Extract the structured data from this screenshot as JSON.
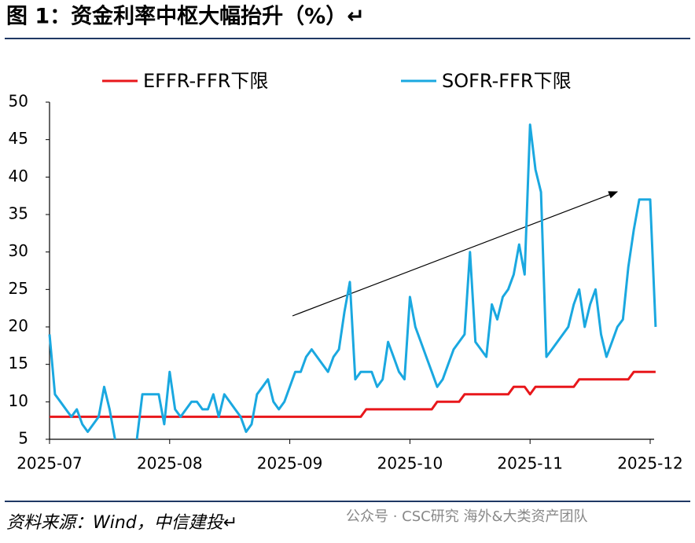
{
  "chart_data": {
    "type": "line",
    "title": "图 1：资金利率中枢大幅抬升（%）↵",
    "source": "资料来源：Wind，中信建投↵",
    "watermark": "公众号 · CSC研究 海外&大类资产团队",
    "categories": [
      "2025-07",
      null,
      null,
      null,
      null,
      null,
      null,
      null,
      null,
      null,
      null,
      null,
      null,
      null,
      null,
      null,
      null,
      null,
      null,
      null,
      null,
      null,
      "2025-08",
      null,
      null,
      null,
      null,
      null,
      null,
      null,
      null,
      null,
      null,
      null,
      null,
      null,
      null,
      null,
      null,
      null,
      null,
      null,
      null,
      null,
      "2025-09",
      null,
      null,
      null,
      null,
      null,
      null,
      null,
      null,
      null,
      null,
      null,
      null,
      null,
      null,
      null,
      null,
      null,
      null,
      null,
      null,
      null,
      "2025-10",
      null,
      null,
      null,
      null,
      null,
      null,
      null,
      null,
      null,
      null,
      null,
      null,
      null,
      null,
      null,
      null,
      null,
      null,
      null,
      null,
      null,
      "2025-11",
      null,
      null,
      null,
      null,
      null,
      null,
      null,
      null,
      null,
      null,
      null,
      null,
      null,
      null,
      null,
      null,
      null,
      null,
      null,
      null,
      null,
      "2025-12",
      null
    ],
    "series": [
      {
        "name": "EFFR-FFR下限",
        "color": "#e8171b",
        "values": [
          8,
          8,
          8,
          8,
          8,
          8,
          8,
          8,
          8,
          8,
          8,
          8,
          8,
          8,
          8,
          8,
          8,
          8,
          8,
          8,
          8,
          8,
          8,
          8,
          8,
          8,
          8,
          8,
          8,
          8,
          8,
          8,
          8,
          8,
          8,
          8,
          8,
          8,
          8,
          8,
          8,
          8,
          8,
          8,
          8,
          8,
          8,
          8,
          8,
          8,
          8,
          8,
          8,
          8,
          8,
          8,
          8,
          8,
          9,
          9,
          9,
          9,
          9,
          9,
          9,
          9,
          9,
          9,
          9,
          9,
          9,
          10,
          10,
          10,
          10,
          10,
          11,
          11,
          11,
          11,
          11,
          11,
          11,
          11,
          11,
          12,
          12,
          12,
          11,
          12,
          12,
          12,
          12,
          12,
          12,
          12,
          12,
          13,
          13,
          13,
          13,
          13,
          13,
          13,
          13,
          13,
          13,
          14,
          14,
          14,
          14,
          14
        ]
      },
      {
        "name": "SOFR-FFR下限",
        "color": "#1aa8e0",
        "values": [
          19,
          11,
          10,
          9,
          8,
          9,
          7,
          6,
          7,
          8,
          12,
          9,
          5,
          null,
          null,
          null,
          5,
          11,
          11,
          11,
          11,
          7,
          14,
          9,
          8,
          9,
          10,
          10,
          9,
          9,
          11,
          8,
          11,
          10,
          9,
          8,
          6,
          7,
          11,
          12,
          13,
          10,
          9,
          10,
          12,
          14,
          14,
          16,
          17,
          16,
          15,
          14,
          16,
          17,
          22,
          26,
          13,
          14,
          14,
          14,
          12,
          13,
          18,
          16,
          14,
          13,
          24,
          20,
          18,
          16,
          14,
          12,
          13,
          15,
          17,
          18,
          19,
          30,
          18,
          17,
          16,
          23,
          21,
          24,
          25,
          27,
          31,
          27,
          47,
          41,
          38,
          16,
          17,
          18,
          19,
          20,
          23,
          25,
          20,
          23,
          25,
          19,
          16,
          18,
          20,
          21,
          28,
          33,
          37,
          37,
          37,
          20
        ]
      }
    ],
    "ylim": [
      5,
      50
    ],
    "yticks": [
      5,
      10,
      15,
      20,
      25,
      30,
      35,
      40,
      45,
      50
    ],
    "legend": "top"
  }
}
